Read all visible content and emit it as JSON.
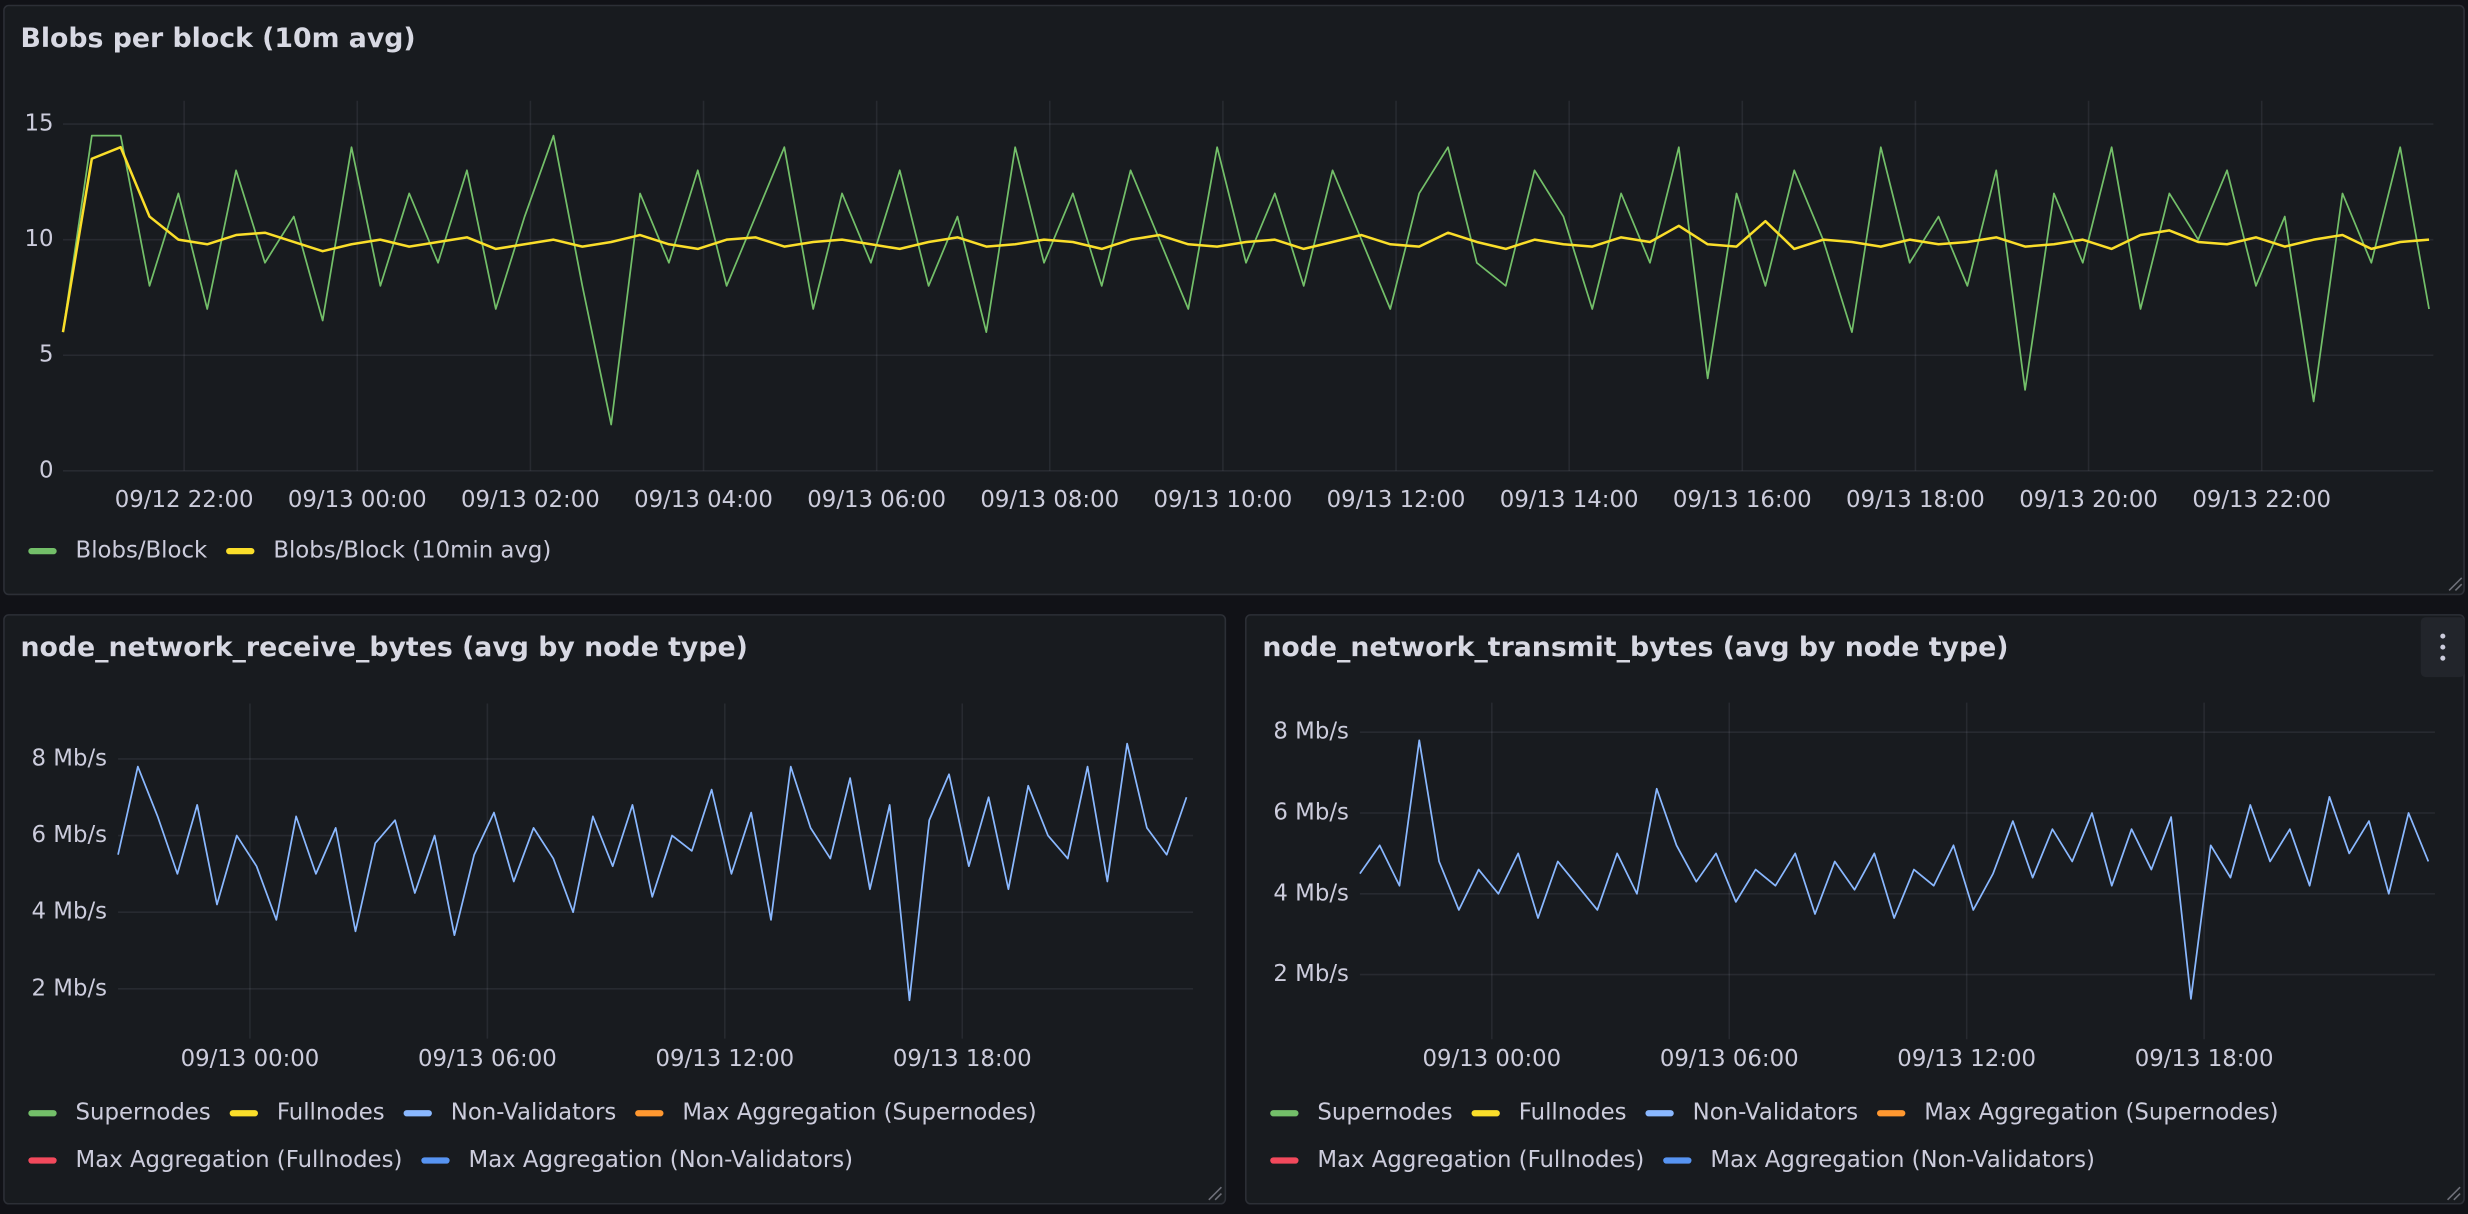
{
  "chart_data": [
    {
      "type": "line",
      "title": "Blobs per block (10m avg)",
      "x": [
        "09/12 20:36",
        "09/12 20:56",
        "09/12 21:16",
        "09/12 21:36",
        "09/12 21:56",
        "09/12 22:16",
        "09/12 22:36",
        "09/12 22:56",
        "09/12 23:16",
        "09/12 23:36",
        "09/12 23:56",
        "09/13 00:16",
        "09/13 00:36",
        "09/13 00:56",
        "09/13 01:16",
        "09/13 01:36",
        "09/13 01:56",
        "09/13 02:16",
        "09/13 02:36",
        "09/13 02:56",
        "09/13 03:16",
        "09/13 03:36",
        "09/13 03:56",
        "09/13 04:16",
        "09/13 04:36",
        "09/13 04:56",
        "09/13 05:16",
        "09/13 05:36",
        "09/13 05:56",
        "09/13 06:16",
        "09/13 06:36",
        "09/13 06:56",
        "09/13 07:16",
        "09/13 07:36",
        "09/13 07:56",
        "09/13 08:16",
        "09/13 08:36",
        "09/13 08:56",
        "09/13 09:16",
        "09/13 09:36",
        "09/13 09:56",
        "09/13 10:16",
        "09/13 10:36",
        "09/13 10:56",
        "09/13 11:16",
        "09/13 11:36",
        "09/13 11:56",
        "09/13 12:16",
        "09/13 12:36",
        "09/13 12:56",
        "09/13 13:16",
        "09/13 13:36",
        "09/13 13:56",
        "09/13 14:16",
        "09/13 14:36",
        "09/13 14:56",
        "09/13 15:16",
        "09/13 15:36",
        "09/13 15:56",
        "09/13 16:16",
        "09/13 16:36",
        "09/13 16:56",
        "09/13 17:16",
        "09/13 17:36",
        "09/13 17:56",
        "09/13 18:16",
        "09/13 18:36",
        "09/13 18:56",
        "09/13 19:16",
        "09/13 19:36",
        "09/13 19:56",
        "09/13 20:16",
        "09/13 20:36",
        "09/13 20:56",
        "09/13 21:16",
        "09/13 21:36",
        "09/13 21:56",
        "09/13 22:16",
        "09/13 22:36",
        "09/13 22:56",
        "09/13 23:16",
        "09/13 23:36",
        "09/13 23:56"
      ],
      "series": [
        {
          "name": "Blobs/Block",
          "color": "#73bf69",
          "values": [
            6,
            14.5,
            14.5,
            8,
            12,
            7,
            13,
            9,
            11,
            6.5,
            14,
            8,
            12,
            9,
            13,
            7,
            11,
            14.5,
            8,
            2,
            12,
            9,
            13,
            8,
            11,
            14,
            7,
            12,
            9,
            13,
            8,
            11,
            6,
            14,
            9,
            12,
            8,
            13,
            10,
            7,
            14,
            9,
            12,
            8,
            13,
            10,
            7,
            12,
            14,
            9,
            8,
            13,
            11,
            7,
            12,
            9,
            14,
            4,
            12,
            8,
            13,
            10,
            6,
            14,
            9,
            11,
            8,
            13,
            3.5,
            12,
            9,
            14,
            7,
            12,
            10,
            13,
            8,
            11,
            3,
            12,
            9,
            14,
            7
          ]
        },
        {
          "name": "Blobs/Block (10min avg)",
          "color": "#fade2a",
          "values": [
            6,
            13.5,
            14,
            11,
            10,
            9.8,
            10.2,
            10.3,
            9.9,
            9.5,
            9.8,
            10,
            9.7,
            9.9,
            10.1,
            9.6,
            9.8,
            10,
            9.7,
            9.9,
            10.2,
            9.8,
            9.6,
            10,
            10.1,
            9.7,
            9.9,
            10,
            9.8,
            9.6,
            9.9,
            10.1,
            9.7,
            9.8,
            10,
            9.9,
            9.6,
            10,
            10.2,
            9.8,
            9.7,
            9.9,
            10,
            9.6,
            9.9,
            10.2,
            9.8,
            9.7,
            10.3,
            9.9,
            9.6,
            10,
            9.8,
            9.7,
            10.1,
            9.9,
            10.6,
            9.8,
            9.7,
            10.8,
            9.6,
            10,
            9.9,
            9.7,
            10,
            9.8,
            9.9,
            10.1,
            9.7,
            9.8,
            10,
            9.6,
            10.2,
            10.4,
            9.9,
            9.8,
            10.1,
            9.7,
            10,
            10.2,
            9.6,
            9.9,
            10
          ]
        }
      ],
      "xlim": [
        "09/12 20:36",
        "09/13 23:59"
      ],
      "xticks": [
        "09/12 22:00",
        "09/13 00:00",
        "09/13 02:00",
        "09/13 04:00",
        "09/13 06:00",
        "09/13 08:00",
        "09/13 10:00",
        "09/13 12:00",
        "09/13 14:00",
        "09/13 16:00",
        "09/13 18:00",
        "09/13 20:00",
        "09/13 22:00"
      ],
      "ylim": [
        0,
        15.6
      ],
      "yticks": [
        0,
        5,
        10,
        15
      ],
      "grid": true
    },
    {
      "type": "line",
      "title": "node_network_receive_bytes (avg by node type)",
      "x": [
        "09/12 20:40",
        "09/12 21:10",
        "09/12 21:40",
        "09/12 22:10",
        "09/12 22:40",
        "09/12 23:10",
        "09/12 23:40",
        "09/13 00:10",
        "09/13 00:40",
        "09/13 01:10",
        "09/13 01:40",
        "09/13 02:10",
        "09/13 02:40",
        "09/13 03:10",
        "09/13 03:40",
        "09/13 04:10",
        "09/13 04:40",
        "09/13 05:10",
        "09/13 05:40",
        "09/13 06:10",
        "09/13 06:40",
        "09/13 07:10",
        "09/13 07:40",
        "09/13 08:10",
        "09/13 08:40",
        "09/13 09:10",
        "09/13 09:40",
        "09/13 10:10",
        "09/13 10:40",
        "09/13 11:10",
        "09/13 11:40",
        "09/13 12:10",
        "09/13 12:40",
        "09/13 13:10",
        "09/13 13:40",
        "09/13 14:10",
        "09/13 14:40",
        "09/13 15:10",
        "09/13 15:40",
        "09/13 16:10",
        "09/13 16:40",
        "09/13 17:10",
        "09/13 17:40",
        "09/13 18:10",
        "09/13 18:40",
        "09/13 19:10",
        "09/13 19:40",
        "09/13 20:10",
        "09/13 20:40",
        "09/13 21:10",
        "09/13 21:40",
        "09/13 22:10",
        "09/13 22:40",
        "09/13 23:10",
        "09/13 23:40"
      ],
      "series": [
        {
          "name": "Supernodes",
          "color": "#73bf69"
        },
        {
          "name": "Fullnodes",
          "color": "#fade2a"
        },
        {
          "name": "Non-Validators",
          "color": "#8ab8ff",
          "values": [
            5.5,
            7.8,
            6.5,
            5,
            6.8,
            4.2,
            6,
            5.2,
            3.8,
            6.5,
            5,
            6.2,
            3.5,
            5.8,
            6.4,
            4.5,
            6,
            3.4,
            5.5,
            6.6,
            4.8,
            6.2,
            5.4,
            4,
            6.5,
            5.2,
            6.8,
            4.4,
            6,
            5.6,
            7.2,
            5,
            6.6,
            3.8,
            7.8,
            6.2,
            5.4,
            7.5,
            4.6,
            6.8,
            1.7,
            6.4,
            7.6,
            5.2,
            7,
            4.6,
            7.3,
            6,
            5.4,
            7.8,
            4.8,
            8.4,
            6.2,
            5.5,
            7
          ]
        },
        {
          "name": "Max Aggregation (Supernodes)",
          "color": "#ff9830"
        },
        {
          "name": "Max Aggregation (Fullnodes)",
          "color": "#f2495c"
        },
        {
          "name": "Max Aggregation (Non-Validators)",
          "color": "#5794f2"
        }
      ],
      "xlim": [
        "09/12 20:40",
        "09/13 23:50"
      ],
      "xticks": [
        "09/13 00:00",
        "09/13 06:00",
        "09/13 12:00",
        "09/13 18:00"
      ],
      "ylim": [
        0.7,
        9.2
      ],
      "yticks": [
        {
          "value": 2,
          "label": "2 Mb/s"
        },
        {
          "value": 4,
          "label": "4 Mb/s"
        },
        {
          "value": 6,
          "label": "6 Mb/s"
        },
        {
          "value": 8,
          "label": "8 Mb/s"
        }
      ],
      "grid": true
    },
    {
      "type": "line",
      "title": "node_network_transmit_bytes (avg by node type)",
      "x": [
        "09/12 20:40",
        "09/12 21:10",
        "09/12 21:40",
        "09/12 22:10",
        "09/12 22:40",
        "09/12 23:10",
        "09/12 23:40",
        "09/13 00:10",
        "09/13 00:40",
        "09/13 01:10",
        "09/13 01:40",
        "09/13 02:10",
        "09/13 02:40",
        "09/13 03:10",
        "09/13 03:40",
        "09/13 04:10",
        "09/13 04:40",
        "09/13 05:10",
        "09/13 05:40",
        "09/13 06:10",
        "09/13 06:40",
        "09/13 07:10",
        "09/13 07:40",
        "09/13 08:10",
        "09/13 08:40",
        "09/13 09:10",
        "09/13 09:40",
        "09/13 10:10",
        "09/13 10:40",
        "09/13 11:10",
        "09/13 11:40",
        "09/13 12:10",
        "09/13 12:40",
        "09/13 13:10",
        "09/13 13:40",
        "09/13 14:10",
        "09/13 14:40",
        "09/13 15:10",
        "09/13 15:40",
        "09/13 16:10",
        "09/13 16:40",
        "09/13 17:10",
        "09/13 17:40",
        "09/13 18:10",
        "09/13 18:40",
        "09/13 19:10",
        "09/13 19:40",
        "09/13 20:10",
        "09/13 20:40",
        "09/13 21:10",
        "09/13 21:40",
        "09/13 22:10",
        "09/13 22:40",
        "09/13 23:10",
        "09/13 23:40"
      ],
      "series": [
        {
          "name": "Supernodes",
          "color": "#73bf69"
        },
        {
          "name": "Fullnodes",
          "color": "#fade2a"
        },
        {
          "name": "Non-Validators",
          "color": "#8ab8ff",
          "values": [
            4.5,
            5.2,
            4.2,
            7.8,
            4.8,
            3.6,
            4.6,
            4,
            5,
            3.4,
            4.8,
            4.2,
            3.6,
            5,
            4,
            6.6,
            5.2,
            4.3,
            5,
            3.8,
            4.6,
            4.2,
            5,
            3.5,
            4.8,
            4.1,
            5,
            3.4,
            4.6,
            4.2,
            5.2,
            3.6,
            4.5,
            5.8,
            4.4,
            5.6,
            4.8,
            6,
            4.2,
            5.6,
            4.6,
            5.9,
            1.4,
            5.2,
            4.4,
            6.2,
            4.8,
            5.6,
            4.2,
            6.4,
            5,
            5.8,
            4,
            6,
            4.8
          ]
        },
        {
          "name": "Max Aggregation (Supernodes)",
          "color": "#ff9830"
        },
        {
          "name": "Max Aggregation (Fullnodes)",
          "color": "#f2495c"
        },
        {
          "name": "Max Aggregation (Non-Validators)",
          "color": "#5794f2"
        }
      ],
      "xlim": [
        "09/12 20:40",
        "09/13 23:50"
      ],
      "xticks": [
        "09/13 00:00",
        "09/13 06:00",
        "09/13 12:00",
        "09/13 18:00"
      ],
      "ylim": [
        0.4,
        8.5
      ],
      "yticks": [
        {
          "value": 2,
          "label": "2 Mb/s"
        },
        {
          "value": 4,
          "label": "4 Mb/s"
        },
        {
          "value": 6,
          "label": "6 Mb/s"
        },
        {
          "value": 8,
          "label": "8 Mb/s"
        }
      ],
      "grid": true
    }
  ]
}
